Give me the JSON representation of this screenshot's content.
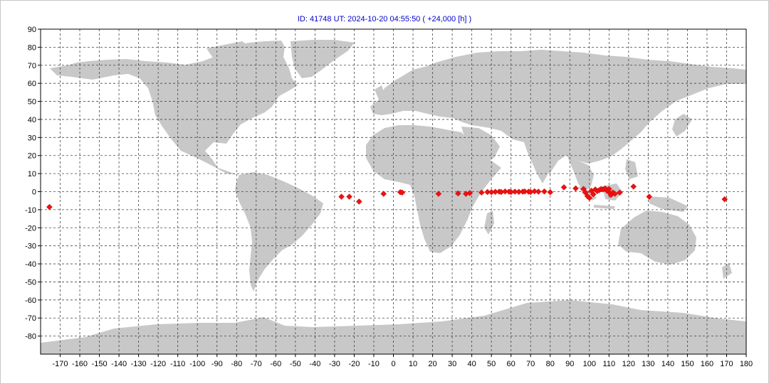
{
  "title": "ID: 41748  UT: 2024-10-20 04:55:50  ( +24,000 [h] )",
  "colors": {
    "land": "#c8c8c8",
    "ocean": "#ffffff",
    "grid": "#444444",
    "marker": "#ee1111",
    "title": "#0000cc"
  },
  "axes": {
    "x_ticks": [
      -170,
      -160,
      -150,
      -140,
      -130,
      -120,
      -110,
      -100,
      -90,
      -80,
      -70,
      -60,
      -50,
      -40,
      -30,
      -20,
      -10,
      0,
      10,
      20,
      30,
      40,
      50,
      60,
      70,
      80,
      90,
      100,
      110,
      120,
      130,
      140,
      150,
      160,
      170,
      180
    ],
    "y_ticks": [
      90,
      80,
      70,
      60,
      50,
      40,
      30,
      20,
      10,
      0,
      -10,
      -20,
      -30,
      -40,
      -50,
      -60,
      -70,
      -80
    ],
    "x_range": [
      -180,
      180
    ],
    "y_range": [
      -90,
      90
    ],
    "grid": true
  },
  "markers": [
    [
      -175.5,
      -8.5
    ],
    [
      -26.5,
      -2.8
    ],
    [
      -22.5,
      -2.8
    ],
    [
      -17.5,
      -5.5
    ],
    [
      -5,
      -1.2
    ],
    [
      3.5,
      -0.3
    ],
    [
      4.5,
      -0.5
    ],
    [
      23,
      -1.2
    ],
    [
      33,
      -1
    ],
    [
      37,
      -1.2
    ],
    [
      39,
      -0.8
    ],
    [
      45,
      -0.5
    ],
    [
      48,
      -0.2
    ],
    [
      50,
      -0.3
    ],
    [
      52,
      -0.1
    ],
    [
      54,
      0
    ],
    [
      55,
      -0.2
    ],
    [
      57,
      0.1
    ],
    [
      59,
      0
    ],
    [
      60,
      -0.2
    ],
    [
      62,
      0
    ],
    [
      64,
      -0.1
    ],
    [
      66,
      0
    ],
    [
      67,
      0.1
    ],
    [
      69,
      0
    ],
    [
      70,
      -0.2
    ],
    [
      72,
      0.2
    ],
    [
      74,
      0
    ],
    [
      77,
      0.1
    ],
    [
      80,
      -0.3
    ],
    [
      87,
      2.4
    ],
    [
      93,
      1.8
    ],
    [
      97,
      1.5
    ],
    [
      98,
      -0.5
    ],
    [
      99,
      -2.5
    ],
    [
      100,
      -3.5
    ],
    [
      101,
      0.5
    ],
    [
      102,
      -1.5
    ],
    [
      103,
      1.2
    ],
    [
      104,
      0.3
    ],
    [
      105,
      0.8
    ],
    [
      106,
      1.5
    ],
    [
      107,
      1.2
    ],
    [
      108,
      1.8
    ],
    [
      109,
      0.5
    ],
    [
      110,
      1.5
    ],
    [
      110.5,
      -0.8
    ],
    [
      111,
      -1.8
    ],
    [
      112,
      -0.5
    ],
    [
      113,
      -1.2
    ],
    [
      115.5,
      -0.5
    ],
    [
      122.5,
      2.8
    ],
    [
      130.5,
      -2.8
    ],
    [
      169,
      -4.2
    ]
  ]
}
